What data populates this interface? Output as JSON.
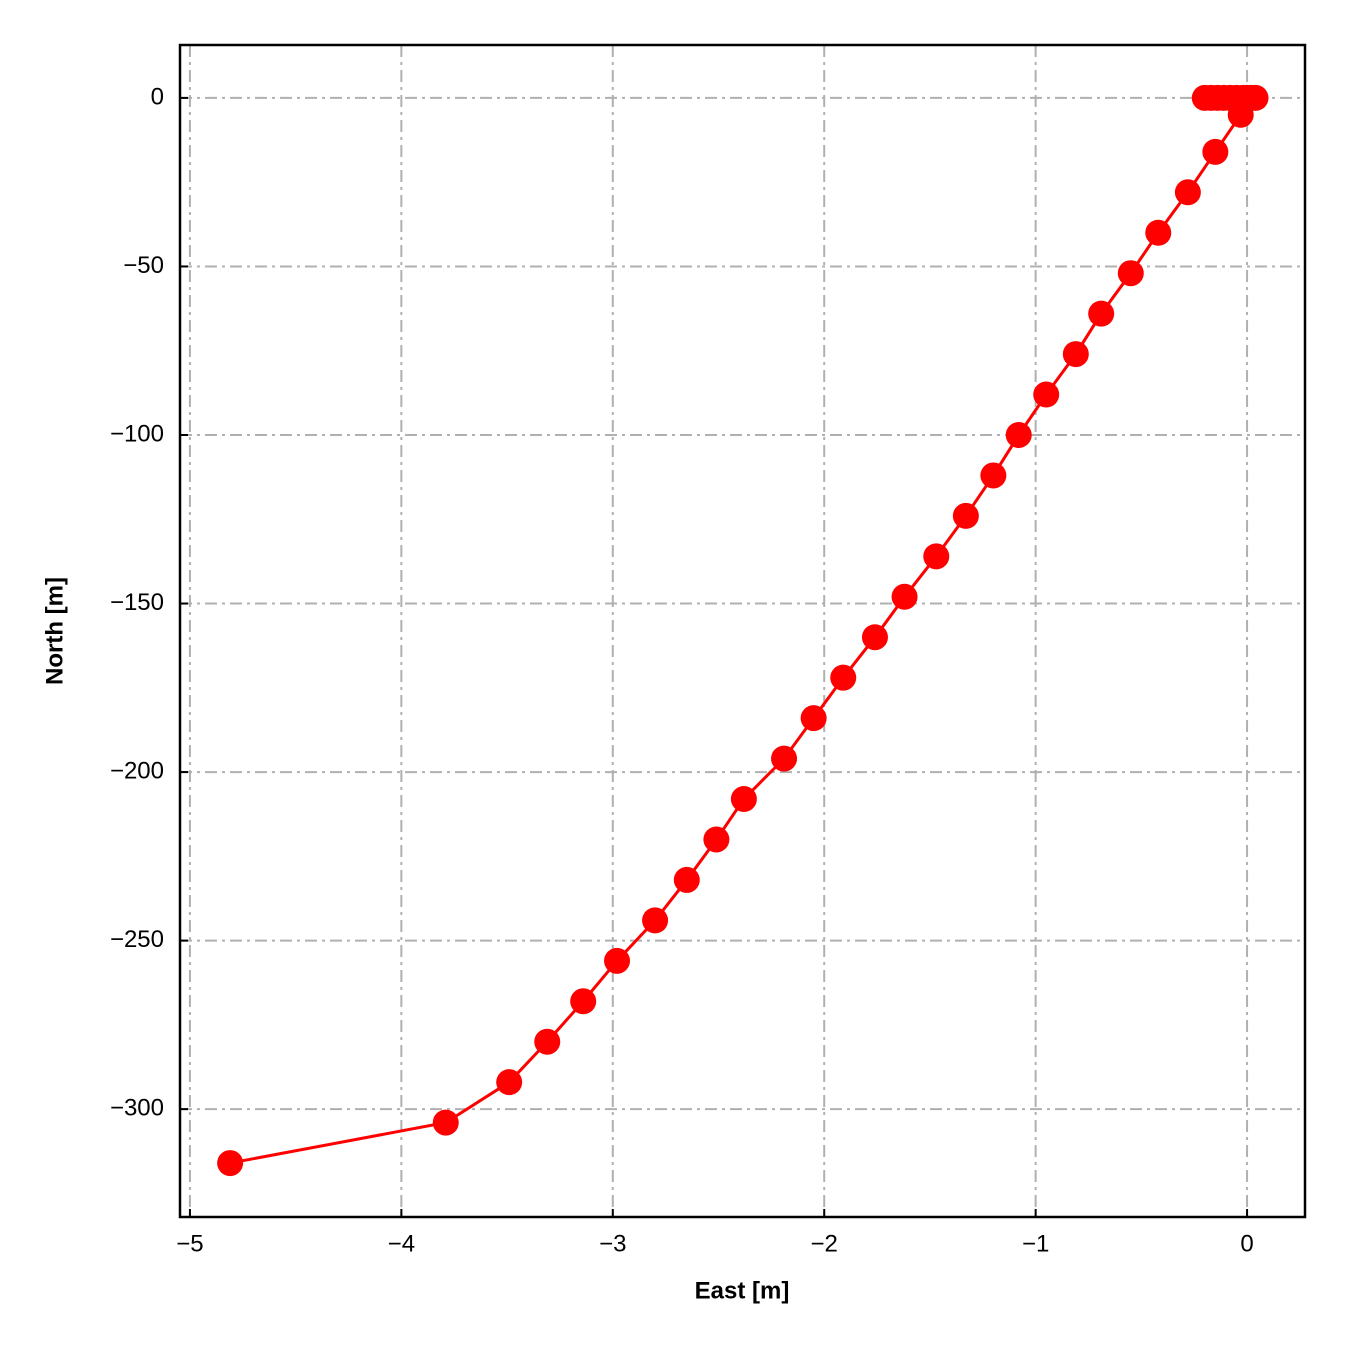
{
  "chart_data": {
    "type": "line",
    "xlabel": "East [m]",
    "ylabel": "North [m]",
    "x": [
      0.04,
      0.02,
      0,
      -0.02,
      -0.05,
      -0.08,
      -0.11,
      -0.14,
      -0.17,
      -0.2,
      -0.03,
      -0.15,
      -0.28,
      -0.42,
      -0.55,
      -0.69,
      -0.81,
      -0.95,
      -1.08,
      -1.2,
      -1.33,
      -1.47,
      -1.62,
      -1.76,
      -1.91,
      -2.05,
      -2.19,
      -2.38,
      -2.51,
      -2.65,
      -2.8,
      -2.98,
      -3.14,
      -3.31,
      -3.49,
      -3.79,
      -4.81
    ],
    "values": [
      0,
      0,
      0,
      0,
      0,
      0,
      0,
      0,
      0,
      0,
      -5,
      -16,
      -28,
      -40,
      -52,
      -64,
      -76,
      -88,
      -100,
      -112,
      -124,
      -136,
      -148,
      -160,
      -172,
      -184,
      -196,
      -208,
      -220,
      -232,
      -244,
      -256,
      -268,
      -280,
      -292,
      -304,
      -316
    ],
    "color": "#ff0000",
    "xlim": [
      -5.047,
      0.274
    ],
    "ylim": [
      -332,
      15.7
    ],
    "xticks": [
      {
        "value": -5,
        "label": "−5"
      },
      {
        "value": -4,
        "label": "−4"
      },
      {
        "value": -3,
        "label": "−3"
      },
      {
        "value": -2,
        "label": "−2"
      },
      {
        "value": -1,
        "label": "−1"
      },
      0
    ],
    "yticks": [
      0,
      {
        "value": -50,
        "label": "−50"
      },
      {
        "value": -100,
        "label": "−100"
      },
      {
        "value": -150,
        "label": "−150"
      },
      {
        "value": -200,
        "label": "−200"
      },
      {
        "value": -250,
        "label": "−250"
      },
      {
        "value": -300,
        "label": "−300"
      }
    ],
    "grid": true
  }
}
